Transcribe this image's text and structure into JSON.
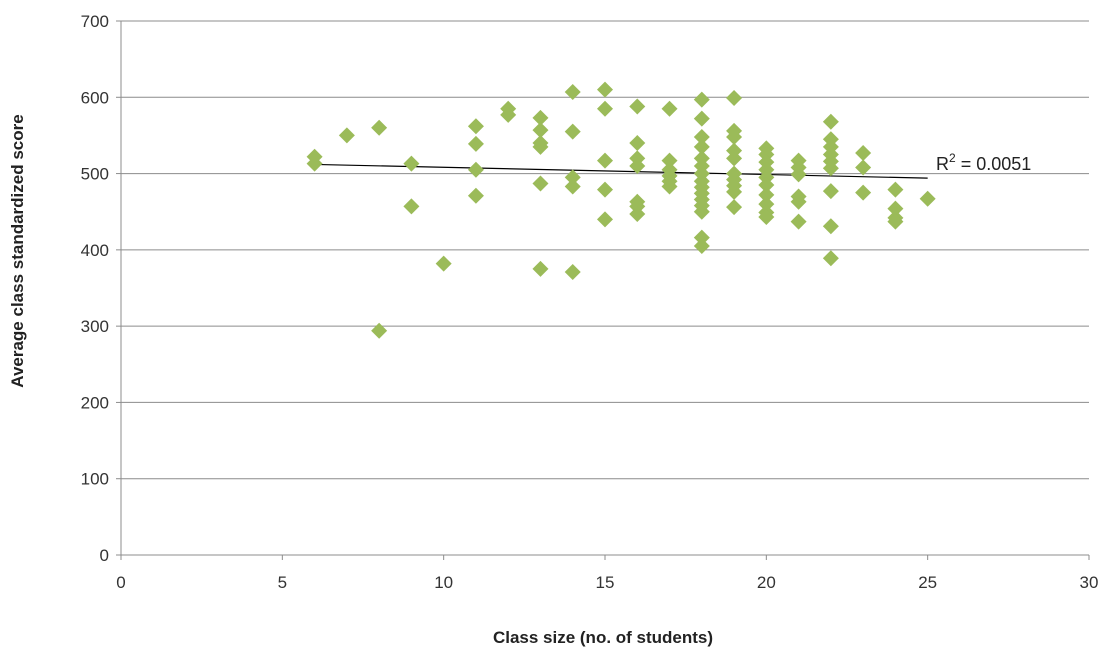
{
  "chart_data": {
    "type": "scatter",
    "xlabel": "Class size (no. of students)",
    "ylabel": "Average class standardized  score",
    "xlim": [
      0,
      30
    ],
    "ylim": [
      0,
      700
    ],
    "xticks": [
      0,
      5,
      10,
      15,
      20,
      25,
      30
    ],
    "yticks": [
      0,
      100,
      200,
      300,
      400,
      500,
      600,
      700
    ],
    "grid": "horizontal",
    "marker_color": "#9bbb59",
    "trendline": {
      "type": "linear",
      "x_range": [
        6,
        25
      ],
      "y_values": [
        512,
        494
      ],
      "label_prefix": "R",
      "label_sup": "2",
      "label_suffix": " = 0.0051"
    },
    "points": [
      [
        6,
        522
      ],
      [
        6,
        513
      ],
      [
        7,
        550
      ],
      [
        8,
        560
      ],
      [
        8,
        294
      ],
      [
        9,
        513
      ],
      [
        9,
        457
      ],
      [
        10,
        382
      ],
      [
        11,
        562
      ],
      [
        11,
        539
      ],
      [
        11,
        505
      ],
      [
        11,
        471
      ],
      [
        12,
        585
      ],
      [
        12,
        577
      ],
      [
        13,
        573
      ],
      [
        13,
        557
      ],
      [
        13,
        540
      ],
      [
        13,
        535
      ],
      [
        13,
        487
      ],
      [
        13,
        375
      ],
      [
        14,
        607
      ],
      [
        14,
        555
      ],
      [
        14,
        495
      ],
      [
        14,
        483
      ],
      [
        14,
        371
      ],
      [
        15,
        610
      ],
      [
        15,
        585
      ],
      [
        15,
        517
      ],
      [
        15,
        479
      ],
      [
        15,
        440
      ],
      [
        16,
        588
      ],
      [
        16,
        540
      ],
      [
        16,
        520
      ],
      [
        16,
        510
      ],
      [
        16,
        463
      ],
      [
        16,
        457
      ],
      [
        16,
        447
      ],
      [
        17,
        585
      ],
      [
        17,
        517
      ],
      [
        17,
        505
      ],
      [
        17,
        497
      ],
      [
        17,
        490
      ],
      [
        17,
        483
      ],
      [
        18,
        597
      ],
      [
        18,
        572
      ],
      [
        18,
        548
      ],
      [
        18,
        535
      ],
      [
        18,
        520
      ],
      [
        18,
        510
      ],
      [
        18,
        500
      ],
      [
        18,
        490
      ],
      [
        18,
        482
      ],
      [
        18,
        474
      ],
      [
        18,
        466
      ],
      [
        18,
        458
      ],
      [
        18,
        450
      ],
      [
        18,
        416
      ],
      [
        18,
        405
      ],
      [
        19,
        599
      ],
      [
        19,
        556
      ],
      [
        19,
        548
      ],
      [
        19,
        530
      ],
      [
        19,
        520
      ],
      [
        19,
        500
      ],
      [
        19,
        492
      ],
      [
        19,
        484
      ],
      [
        19,
        476
      ],
      [
        19,
        456
      ],
      [
        20,
        533
      ],
      [
        20,
        525
      ],
      [
        20,
        515
      ],
      [
        20,
        505
      ],
      [
        20,
        495
      ],
      [
        20,
        485
      ],
      [
        20,
        472
      ],
      [
        20,
        460
      ],
      [
        20,
        449
      ],
      [
        20,
        443
      ],
      [
        21,
        517
      ],
      [
        21,
        508
      ],
      [
        21,
        499
      ],
      [
        21,
        470
      ],
      [
        21,
        463
      ],
      [
        21,
        437
      ],
      [
        22,
        568
      ],
      [
        22,
        545
      ],
      [
        22,
        535
      ],
      [
        22,
        525
      ],
      [
        22,
        516
      ],
      [
        22,
        507
      ],
      [
        22,
        477
      ],
      [
        22,
        431
      ],
      [
        22,
        389
      ],
      [
        23,
        527
      ],
      [
        23,
        508
      ],
      [
        23,
        475
      ],
      [
        24,
        479
      ],
      [
        24,
        454
      ],
      [
        24,
        442
      ],
      [
        24,
        437
      ],
      [
        25,
        467
      ]
    ]
  }
}
